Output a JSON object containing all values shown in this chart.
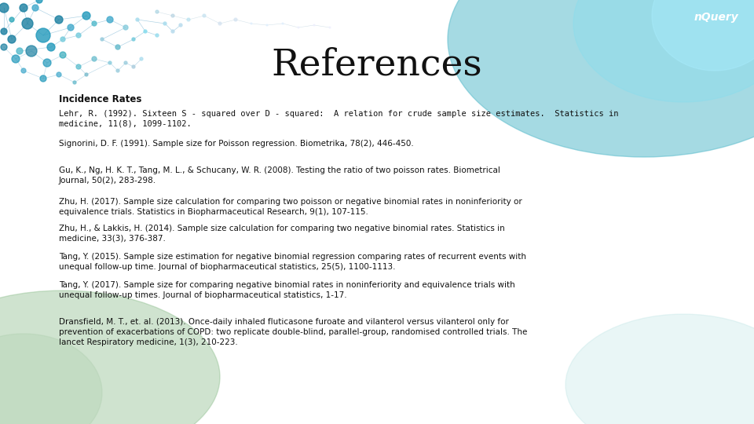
{
  "title": "References",
  "title_fontsize": 34,
  "title_color": "#111111",
  "title_font": "serif",
  "section_header": "Incidence Rates",
  "section_header_fontsize": 8.5,
  "ref_fontsize": 7.5,
  "bg_color": "#f0f4f0",
  "text_color": "#111111",
  "references": [
    "Lehr, R. (1992). Sixteen S - squared over D - squared:  A relation for crude sample size estimates.  Statistics in\nmedicine, 11(8), 1099-1102.",
    "Signorini, D. F. (1991). Sample size for Poisson regression. Biometrika, 78(2), 446-450.",
    "Gu, K., Ng, H. K. T., Tang, M. L., & Schucany, W. R. (2008). Testing the ratio of two poisson rates. Biometrical\nJournal, 50(2), 283-298.",
    "Zhu, H. (2017). Sample size calculation for comparing two poisson or negative binomial rates in noninferiority or\nequivalence trials. Statistics in Biopharmaceutical Research, 9(1), 107-115.",
    "Zhu, H., & Lakkis, H. (2014). Sample size calculation for comparing two negative binomial rates. Statistics in\nmedicine, 33(3), 376-387.",
    "Tang, Y. (2015). Sample size estimation for negative binomial regression comparing rates of recurrent events with\nunequal follow-up time. Journal of biopharmaceutical statistics, 25(5), 1100-1113.",
    "Tang, Y. (2017). Sample size for comparing negative binomial rates in noninferiority and equivalence trials with\nunequal follow-up times. Journal of biopharmaceutical statistics, 1-17.",
    "Dransfield, M. T., et. al. (2013). Once-daily inhaled fluticasone furoate and vilanterol versus vilanterol only for\nprevention of exacerbations of COPD: two replicate double-blind, parallel-group, randomised controlled trials. The\nlancet Respiratory medicine, 1(3), 210-223."
  ],
  "lehr_font": "monospace",
  "normal_font": "sans-serif",
  "nquery_text": "nQuery",
  "nquery_color": "#ffffff",
  "nquery_fontsize": 10,
  "bg_gradient_top_right": "#5bbccc",
  "bg_gradient_bottom_left": "#88cc88",
  "bubble_color_dark": "#1a7fa0",
  "bubble_color_mid": "#44aacc",
  "bubble_color_light": "#88ddee"
}
